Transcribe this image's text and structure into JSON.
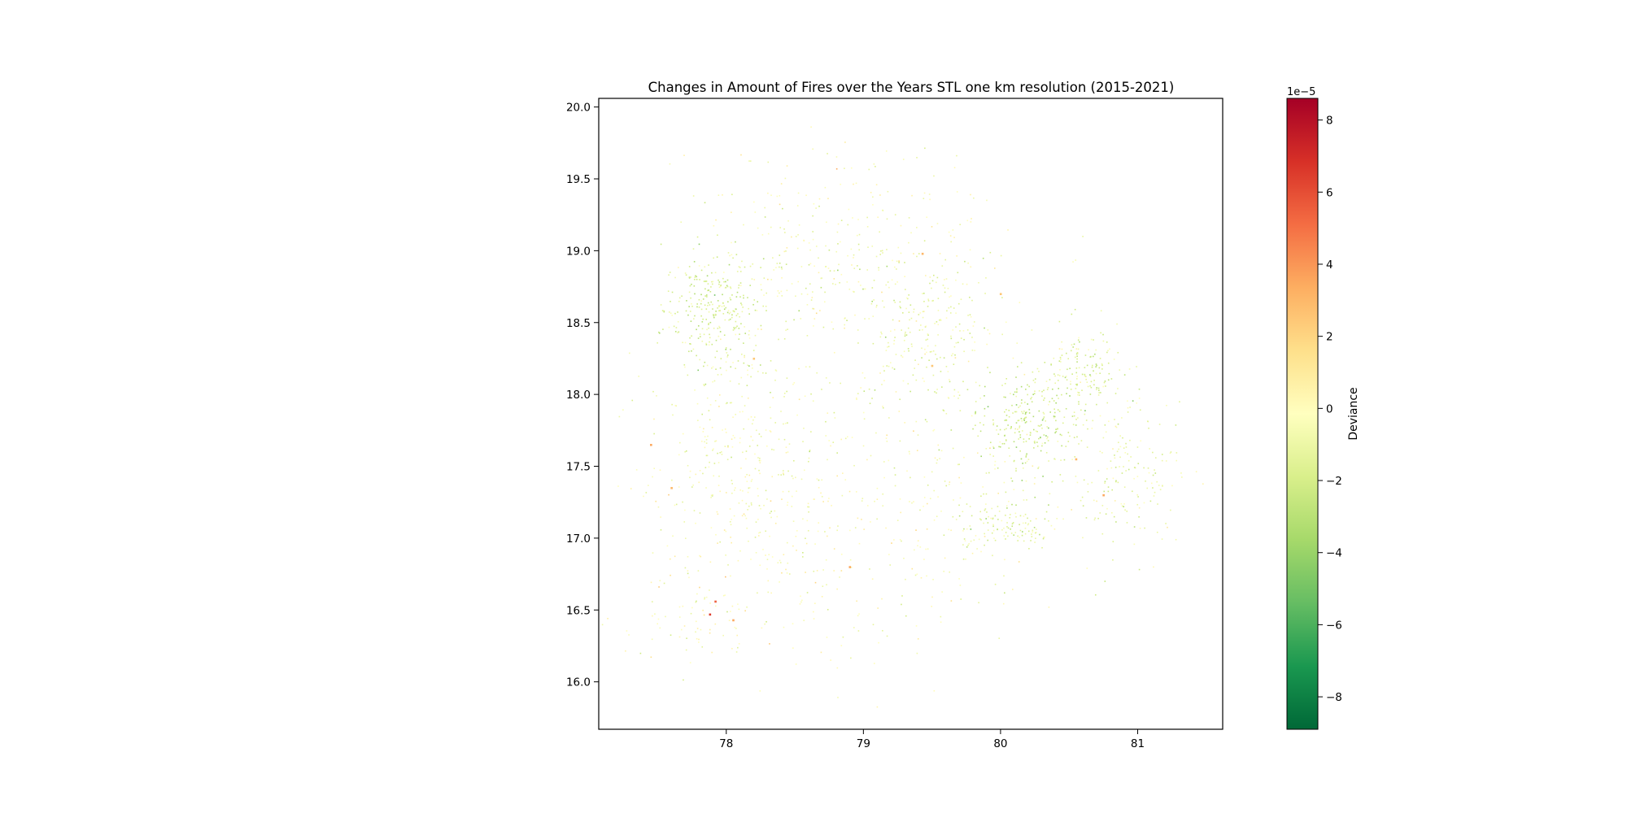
{
  "chart_data": {
    "type": "heatmap",
    "title": "Changes in Amount of Fires over the Years STL one km resolution (2015-2021)",
    "xlabel": "",
    "ylabel": "",
    "xlim": [
      77.07,
      81.62
    ],
    "ylim": [
      15.67,
      20.06
    ],
    "x_ticks": [
      78,
      79,
      80,
      81
    ],
    "x_tick_labels": [
      "78",
      "79",
      "80",
      "81"
    ],
    "y_ticks": [
      16.0,
      16.5,
      17.0,
      17.5,
      18.0,
      18.5,
      19.0,
      19.5,
      20.0
    ],
    "y_tick_labels": [
      "16.0",
      "16.5",
      "17.0",
      "17.5",
      "18.0",
      "18.5",
      "19.0",
      "19.5",
      "20.0"
    ],
    "grid": false,
    "colorbar": {
      "label": "Deviance",
      "offset_text": "1e−5",
      "colormap": "RdYlGn_r",
      "range": [
        -8.9,
        8.6
      ],
      "ticks": [
        -8,
        -6,
        -4,
        -2,
        0,
        2,
        4,
        6,
        8
      ],
      "tick_labels": [
        "−8",
        "−6",
        "−4",
        "−2",
        "0",
        "2",
        "4",
        "6",
        "8"
      ],
      "colors": [
        "#006837",
        "#1a9850",
        "#66bd63",
        "#a6d96a",
        "#d9ef8b",
        "#ffffbf",
        "#fee08b",
        "#fdae61",
        "#f46d43",
        "#d73027",
        "#a50026"
      ]
    },
    "clusters": [
      {
        "x": 77.9,
        "y": 18.6,
        "sx": 0.18,
        "sy": 0.2,
        "n": 260,
        "value": -2.0
      },
      {
        "x": 79.4,
        "y": 18.45,
        "sx": 0.3,
        "sy": 0.25,
        "n": 220,
        "value": -1.2
      },
      {
        "x": 80.2,
        "y": 17.8,
        "sx": 0.2,
        "sy": 0.18,
        "n": 260,
        "value": -2.2
      },
      {
        "x": 80.6,
        "y": 18.15,
        "sx": 0.15,
        "sy": 0.15,
        "n": 150,
        "value": -1.8
      },
      {
        "x": 80.9,
        "y": 17.45,
        "sx": 0.2,
        "sy": 0.25,
        "n": 170,
        "value": -1.2
      },
      {
        "x": 80.05,
        "y": 17.1,
        "sx": 0.2,
        "sy": 0.1,
        "n": 110,
        "value": -1.5
      },
      {
        "x": 78.6,
        "y": 18.85,
        "sx": 0.4,
        "sy": 0.25,
        "n": 150,
        "value": -0.8
      },
      {
        "x": 78.1,
        "y": 17.9,
        "sx": 0.25,
        "sy": 0.3,
        "n": 140,
        "value": -0.9
      },
      {
        "x": 78.0,
        "y": 17.4,
        "sx": 0.35,
        "sy": 0.3,
        "n": 140,
        "value": -0.6
      },
      {
        "x": 79.3,
        "y": 17.3,
        "sx": 0.6,
        "sy": 0.5,
        "n": 300,
        "value": -0.4
      },
      {
        "x": 78.5,
        "y": 16.9,
        "sx": 0.5,
        "sy": 0.4,
        "n": 120,
        "value": -0.3
      },
      {
        "x": 77.8,
        "y": 16.5,
        "sx": 0.3,
        "sy": 0.2,
        "n": 90,
        "value": -0.2
      },
      {
        "x": 78.5,
        "y": 19.3,
        "sx": 0.5,
        "sy": 0.25,
        "n": 80,
        "value": -0.3
      },
      {
        "x": 79.5,
        "y": 19.0,
        "sx": 0.4,
        "sy": 0.3,
        "n": 90,
        "value": -0.5
      }
    ],
    "hotspots": [
      {
        "x": 77.88,
        "y": 16.47,
        "value": 6.5
      },
      {
        "x": 77.92,
        "y": 16.56,
        "value": 5.5
      },
      {
        "x": 78.05,
        "y": 16.43,
        "value": 3.5
      },
      {
        "x": 77.45,
        "y": 17.65,
        "value": 3.5
      },
      {
        "x": 77.6,
        "y": 17.35,
        "value": 3.0
      },
      {
        "x": 78.9,
        "y": 16.8,
        "value": 3.5
      },
      {
        "x": 79.43,
        "y": 18.98,
        "value": 3.0
      },
      {
        "x": 80.55,
        "y": 17.55,
        "value": 3.0
      },
      {
        "x": 80.75,
        "y": 17.3,
        "value": 3.5
      },
      {
        "x": 80.0,
        "y": 18.7,
        "value": 2.5
      },
      {
        "x": 78.2,
        "y": 18.25,
        "value": 2.5
      },
      {
        "x": 79.5,
        "y": 18.2,
        "value": 2.5
      }
    ]
  }
}
